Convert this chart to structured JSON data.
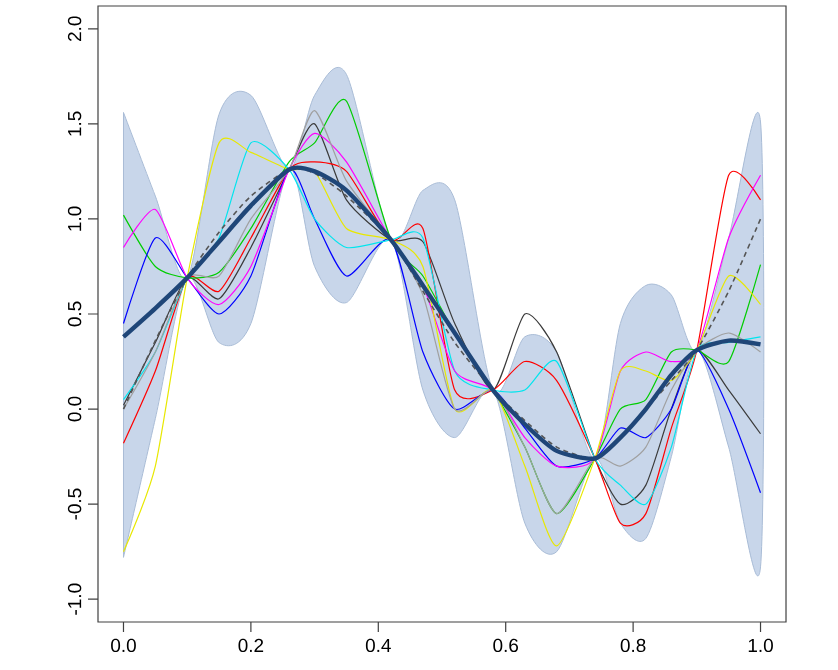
{
  "chart_data": {
    "type": "line",
    "x": [
      0,
      0.05,
      0.1,
      0.15,
      0.2,
      0.26,
      0.3,
      0.35,
      0.42,
      0.47,
      0.52,
      0.58,
      0.63,
      0.68,
      0.74,
      0.78,
      0.82,
      0.86,
      0.9,
      0.95,
      1.0
    ],
    "xlim": [
      -0.04,
      1.04
    ],
    "ylim": [
      -1.12,
      2.12
    ],
    "xticks": [
      {
        "value": 0,
        "label": "0.0"
      },
      {
        "value": 0.2,
        "label": "0.2"
      },
      {
        "value": 0.4,
        "label": "0.4"
      },
      {
        "value": 0.6,
        "label": "0.6"
      },
      {
        "value": 0.8,
        "label": "0.8"
      },
      {
        "value": 1.0,
        "label": "1.0"
      }
    ],
    "yticks": [
      {
        "value": -1,
        "label": "-1.0"
      },
      {
        "value": -0.5,
        "label": "-0.5"
      },
      {
        "value": 0,
        "label": "0.0"
      },
      {
        "value": 0.5,
        "label": "0.5"
      },
      {
        "value": 1.0,
        "label": "1.0"
      },
      {
        "value": 1.5,
        "label": "1.5"
      },
      {
        "value": 2.0,
        "label": "2.0"
      }
    ],
    "grid": false,
    "marker": "none",
    "series": [
      {
        "color": "#3a3a3a",
        "values": [
          0.02,
          0.35,
          0.69,
          0.58,
          0.85,
          1.26,
          1.5,
          1.1,
          0.89,
          0.88,
          0.45,
          0.1,
          0.5,
          0.3,
          -0.26,
          -0.5,
          -0.4,
          0.0,
          0.31,
          0.1,
          -0.13
        ]
      },
      {
        "color": "#ff0000",
        "values": [
          -0.18,
          0.2,
          0.69,
          0.62,
          0.9,
          1.26,
          1.3,
          1.25,
          0.89,
          0.95,
          0.1,
          0.1,
          0.25,
          0.15,
          -0.26,
          -0.6,
          -0.55,
          -0.1,
          0.31,
          1.23,
          1.1
        ]
      },
      {
        "color": "#00cd00",
        "values": [
          1.02,
          0.75,
          0.69,
          0.72,
          0.95,
          1.3,
          1.4,
          1.62,
          0.89,
          0.7,
          0.4,
          0.1,
          -0.2,
          -0.55,
          -0.26,
          0.0,
          0.05,
          0.3,
          0.31,
          0.25,
          0.76
        ]
      },
      {
        "color": "#0000ff",
        "values": [
          0.45,
          0.9,
          0.69,
          0.5,
          0.7,
          1.26,
          1.0,
          0.7,
          0.89,
          0.3,
          0.0,
          0.1,
          -0.1,
          -0.3,
          -0.26,
          -0.1,
          -0.15,
          0.0,
          0.31,
          0.0,
          -0.44
        ]
      },
      {
        "color": "#00e5ee",
        "values": [
          0.05,
          0.3,
          0.69,
          0.9,
          1.4,
          1.26,
          1.0,
          0.85,
          0.89,
          0.9,
          0.2,
          0.1,
          0.1,
          0.25,
          -0.26,
          -0.4,
          -0.5,
          -0.2,
          0.31,
          0.35,
          0.38
        ]
      },
      {
        "color": "#ff00ff",
        "values": [
          0.85,
          1.05,
          0.69,
          0.55,
          0.75,
          1.26,
          1.45,
          1.3,
          0.89,
          0.65,
          0.2,
          0.1,
          -0.15,
          -0.3,
          -0.26,
          0.2,
          0.3,
          0.25,
          0.31,
          0.9,
          1.23
        ]
      },
      {
        "color": "#e8e800",
        "values": [
          -0.75,
          -0.3,
          0.69,
          1.4,
          1.35,
          1.26,
          1.25,
          0.95,
          0.89,
          0.75,
          0.0,
          0.1,
          -0.3,
          -0.72,
          -0.26,
          0.2,
          0.2,
          0.15,
          0.31,
          0.7,
          0.55
        ]
      },
      {
        "color": "#a0a0a0",
        "values": [
          0.0,
          0.3,
          0.69,
          0.7,
          1.0,
          1.26,
          1.57,
          1.2,
          0.89,
          0.6,
          0.0,
          0.1,
          -0.2,
          -0.55,
          -0.26,
          -0.3,
          -0.2,
          0.1,
          0.31,
          0.4,
          0.3
        ]
      },
      {
        "color": "#555555",
        "line_style": "dashed",
        "values": [
          0.0,
          0.36,
          0.69,
          0.93,
          1.12,
          1.26,
          1.24,
          1.12,
          0.89,
          0.62,
          0.35,
          0.1,
          -0.06,
          -0.2,
          -0.26,
          -0.15,
          0.0,
          0.15,
          0.31,
          0.62,
          1.0
        ]
      },
      {
        "color": "#1f4678",
        "values": [
          0.38,
          0.53,
          0.69,
          0.88,
          1.07,
          1.26,
          1.25,
          1.15,
          0.89,
          0.65,
          0.4,
          0.1,
          -0.08,
          -0.22,
          -0.26,
          -0.15,
          0.0,
          0.18,
          0.31,
          0.36,
          0.34
        ],
        "upper": [
          1.56,
          1.12,
          0.69,
          1.55,
          1.65,
          1.26,
          1.65,
          1.76,
          0.89,
          1.15,
          1.1,
          0.1,
          0.38,
          0.3,
          -0.26,
          0.45,
          0.65,
          0.6,
          0.31,
          0.9,
          1.51
        ],
        "lower": [
          -0.78,
          -0.05,
          0.69,
          0.35,
          0.45,
          1.26,
          0.75,
          0.56,
          0.89,
          0.1,
          -0.15,
          0.1,
          -0.6,
          -0.75,
          -0.26,
          -0.6,
          -0.68,
          -0.25,
          0.31,
          -0.2,
          -0.83
        ]
      }
    ]
  }
}
